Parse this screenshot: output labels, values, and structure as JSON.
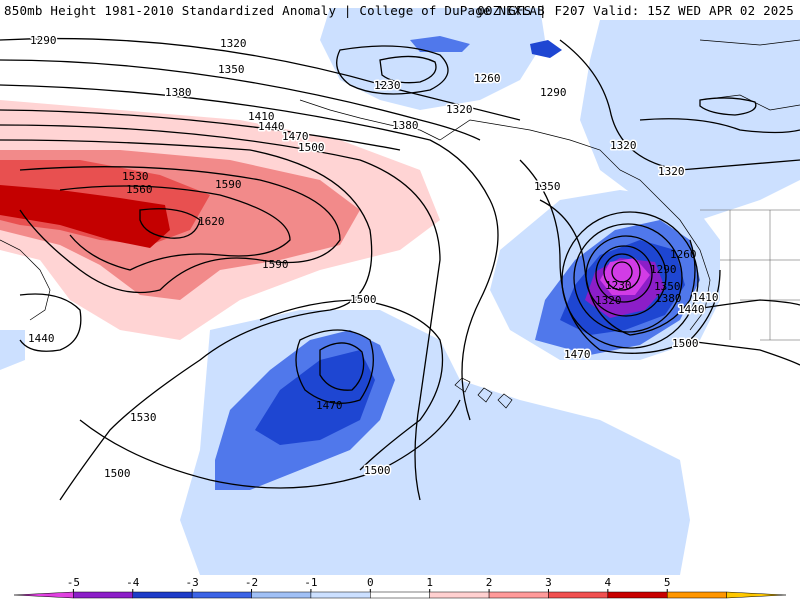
{
  "header": {
    "left_title": "850mb Height 1981-2010 Standardized Anomaly | College of DuPage NEXLAB",
    "right_title": "00Z GFS | F207 Valid: 15Z WED APR 02 2025"
  },
  "contour_labels": [
    "1290",
    "1320",
    "1350",
    "1380",
    "1410",
    "1440",
    "1470",
    "1500",
    "1530",
    "1560",
    "1590",
    "1620",
    "1590",
    "1230",
    "1260",
    "1290",
    "1320",
    "1350",
    "1320",
    "1320",
    "1380",
    "1500",
    "1470",
    "1500",
    "1440",
    "1530",
    "1500",
    "1350",
    "1260",
    "1290",
    "1230",
    "1320",
    "1380",
    "1410",
    "1440",
    "1470",
    "1500"
  ],
  "legend": {
    "ticks": [
      "-5",
      "-4",
      "-3",
      "-2",
      "-1",
      "0",
      "1",
      "2",
      "3",
      "4",
      "5"
    ],
    "colors": [
      "#e040e0",
      "#8c1ec8",
      "#1e3cc8",
      "#3c64e6",
      "#a0c0f5",
      "#cce0ff",
      "#ffffff",
      "#ffd0d0",
      "#ff9a9a",
      "#f05050",
      "#c80000",
      "#ff9600",
      "#ffc800"
    ]
  },
  "colors": {
    "neg1": "#cce0ff",
    "neg2": "#5078eb",
    "neg3": "#1e46d2",
    "neg4": "#8c1ec8",
    "neg5": "#d23ce6",
    "pos1": "#ffd4d4",
    "pos2": "#f28a8a",
    "pos3": "#e85050",
    "pos4": "#c40000"
  },
  "map_icons": [
    "coastline-icon",
    "state-border-icon"
  ]
}
